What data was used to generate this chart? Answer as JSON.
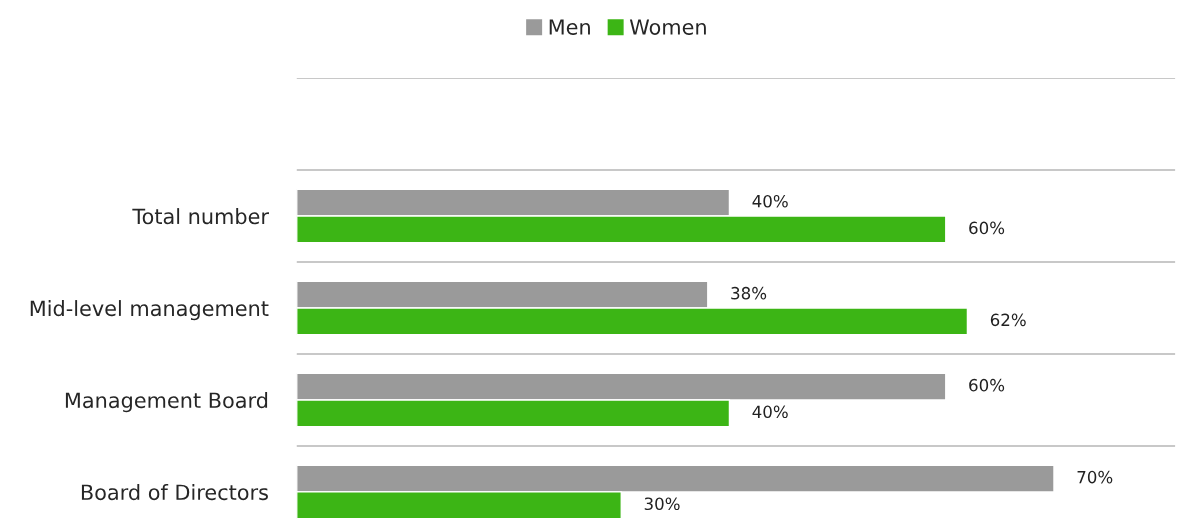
{
  "chart_data": {
    "type": "bar",
    "orientation": "horizontal",
    "categories": [
      null,
      "Total number",
      "Mid-level management",
      "Management Board",
      "Board of Directors"
    ],
    "series": [
      {
        "name": "Men",
        "color": "#9a9a9a",
        "values": [
          null,
          40,
          38,
          60,
          70
        ],
        "value_labels": [
          null,
          "40%",
          "38%",
          "60%",
          "70%"
        ]
      },
      {
        "name": "Women",
        "color": "#3cb515",
        "values": [
          null,
          60,
          62,
          40,
          30
        ],
        "value_labels": [
          null,
          "60%",
          "62%",
          "40%",
          "30%"
        ]
      }
    ],
    "grid": true,
    "legend": "top",
    "tick_labels": "y"
  }
}
